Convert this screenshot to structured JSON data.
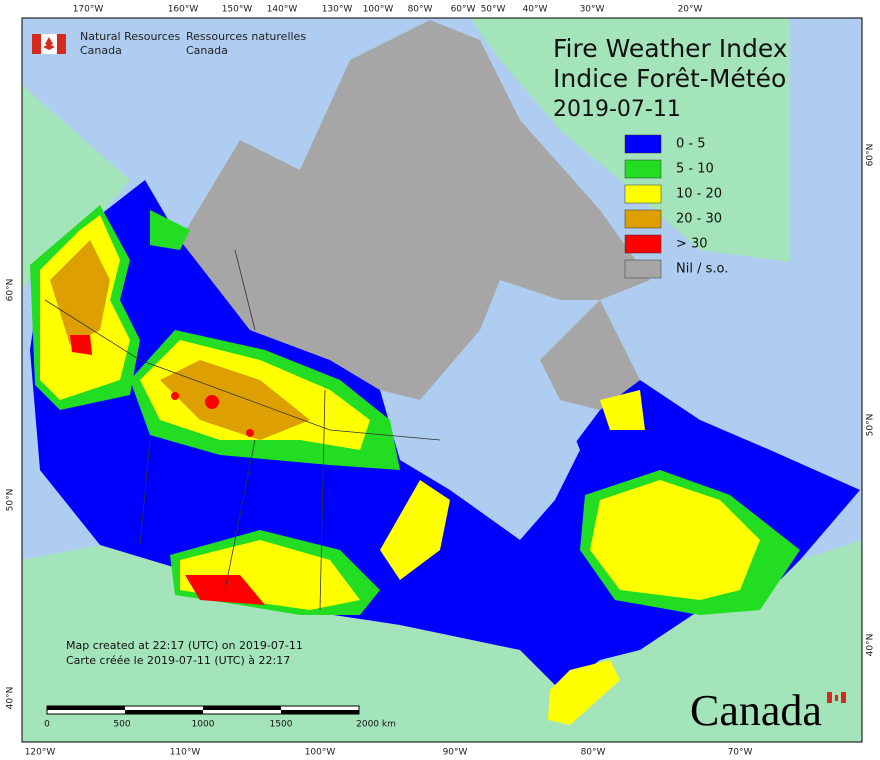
{
  "header": {
    "org_en": [
      "Natural Resources",
      "Canada"
    ],
    "org_fr": [
      "Ressources naturelles",
      "Canada"
    ]
  },
  "title": [
    "Fire Weather Index",
    "Indice Forêt-Météo"
  ],
  "date": "2019-07-11",
  "legend": [
    {
      "label": "0 - 5",
      "color": "#0000ff"
    },
    {
      "label": "5 - 10",
      "color": "#22dd22"
    },
    {
      "label": "10 - 20",
      "color": "#ffff00"
    },
    {
      "label": "20 - 30",
      "color": "#dda000"
    },
    {
      "label": "> 30",
      "color": "#ff0000"
    },
    {
      "label": "Nil / s.o.",
      "color": "#a6a6a6"
    }
  ],
  "graticule": {
    "top": [
      "170°W",
      "160°W",
      "150°W",
      "140°W",
      "130°W",
      "100°W",
      "80°W",
      "60°W",
      "50°W",
      "40°W",
      "30°W",
      "20°W"
    ],
    "bottom": [
      "120°W",
      "110°W",
      "100°W",
      "90°W",
      "80°W",
      "70°W"
    ],
    "left": [
      "60°N",
      "50°N",
      "40°N"
    ],
    "right": [
      "60°N",
      "50°N",
      "40°N"
    ]
  },
  "credits": [
    "Map created at 22:17 (UTC) on 2019-07-11",
    "Carte créée le 2019-07-11 (UTC) à 22:17"
  ],
  "scale_bar": [
    "0",
    "500",
    "1000",
    "1500",
    "2000 km"
  ],
  "wordmark": "Canada"
}
